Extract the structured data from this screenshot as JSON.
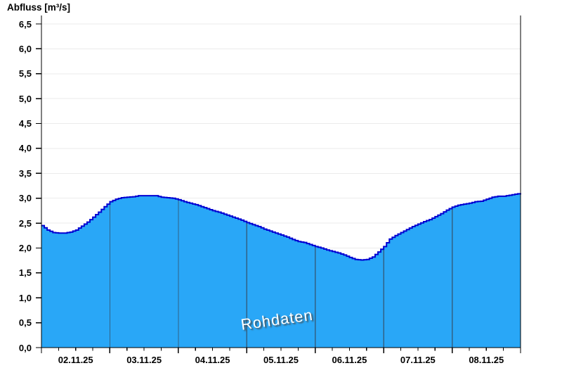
{
  "chart": {
    "title": "Abfluss [m³/s]",
    "watermark": "Rohdaten"
  },
  "chart_data": {
    "type": "area",
    "title": "Abfluss [m³/s]",
    "ylabel": "Abfluss [m³/s]",
    "xlabel": "",
    "ylim": [
      0,
      6.5
    ],
    "ytick_step": 0.5,
    "y_tick_labels": [
      "0,0",
      "0,5",
      "1,0",
      "1,5",
      "2,0",
      "2,5",
      "3,0",
      "3,5",
      "4,0",
      "4,5",
      "5,0",
      "5,5",
      "6,0",
      "6,5"
    ],
    "x_day_labels": [
      "02.11.25",
      "03.11.25",
      "04.11.25",
      "05.11.25",
      "06.11.25",
      "07.11.25",
      "08.11.25"
    ],
    "x_minor_ticks_per_day": 4,
    "sample_interval_hours": 2,
    "grid": {
      "horizontal": true,
      "vertical_day_lines": true
    },
    "legend": "none",
    "watermark": "Rohdaten",
    "series": [
      {
        "name": "Abfluss Rohdaten",
        "unit": "m³/s",
        "values": [
          2.45,
          2.36,
          2.31,
          2.3,
          2.3,
          2.32,
          2.36,
          2.44,
          2.52,
          2.62,
          2.72,
          2.83,
          2.93,
          2.98,
          3.01,
          3.02,
          3.03,
          3.05,
          3.05,
          3.05,
          3.05,
          3.02,
          3.01,
          3.0,
          2.97,
          2.93,
          2.9,
          2.87,
          2.83,
          2.79,
          2.75,
          2.72,
          2.68,
          2.64,
          2.6,
          2.56,
          2.51,
          2.47,
          2.43,
          2.38,
          2.34,
          2.3,
          2.26,
          2.22,
          2.17,
          2.13,
          2.11,
          2.07,
          2.03,
          2.0,
          1.96,
          1.93,
          1.9,
          1.86,
          1.81,
          1.77,
          1.76,
          1.77,
          1.82,
          1.92,
          2.03,
          2.18,
          2.25,
          2.31,
          2.37,
          2.43,
          2.48,
          2.53,
          2.57,
          2.63,
          2.69,
          2.76,
          2.82,
          2.86,
          2.88,
          2.9,
          2.93,
          2.94,
          2.98,
          3.02,
          3.04,
          3.04,
          3.06,
          3.08,
          3.1
        ]
      }
    ],
    "colors": {
      "area_fill": "#29a7f7",
      "area_line": "#0000d2",
      "day_line": "#316286",
      "gridline": "#ebebeb",
      "axis": "#000000",
      "text": "#000000",
      "watermark_text": "#ffffff"
    }
  }
}
